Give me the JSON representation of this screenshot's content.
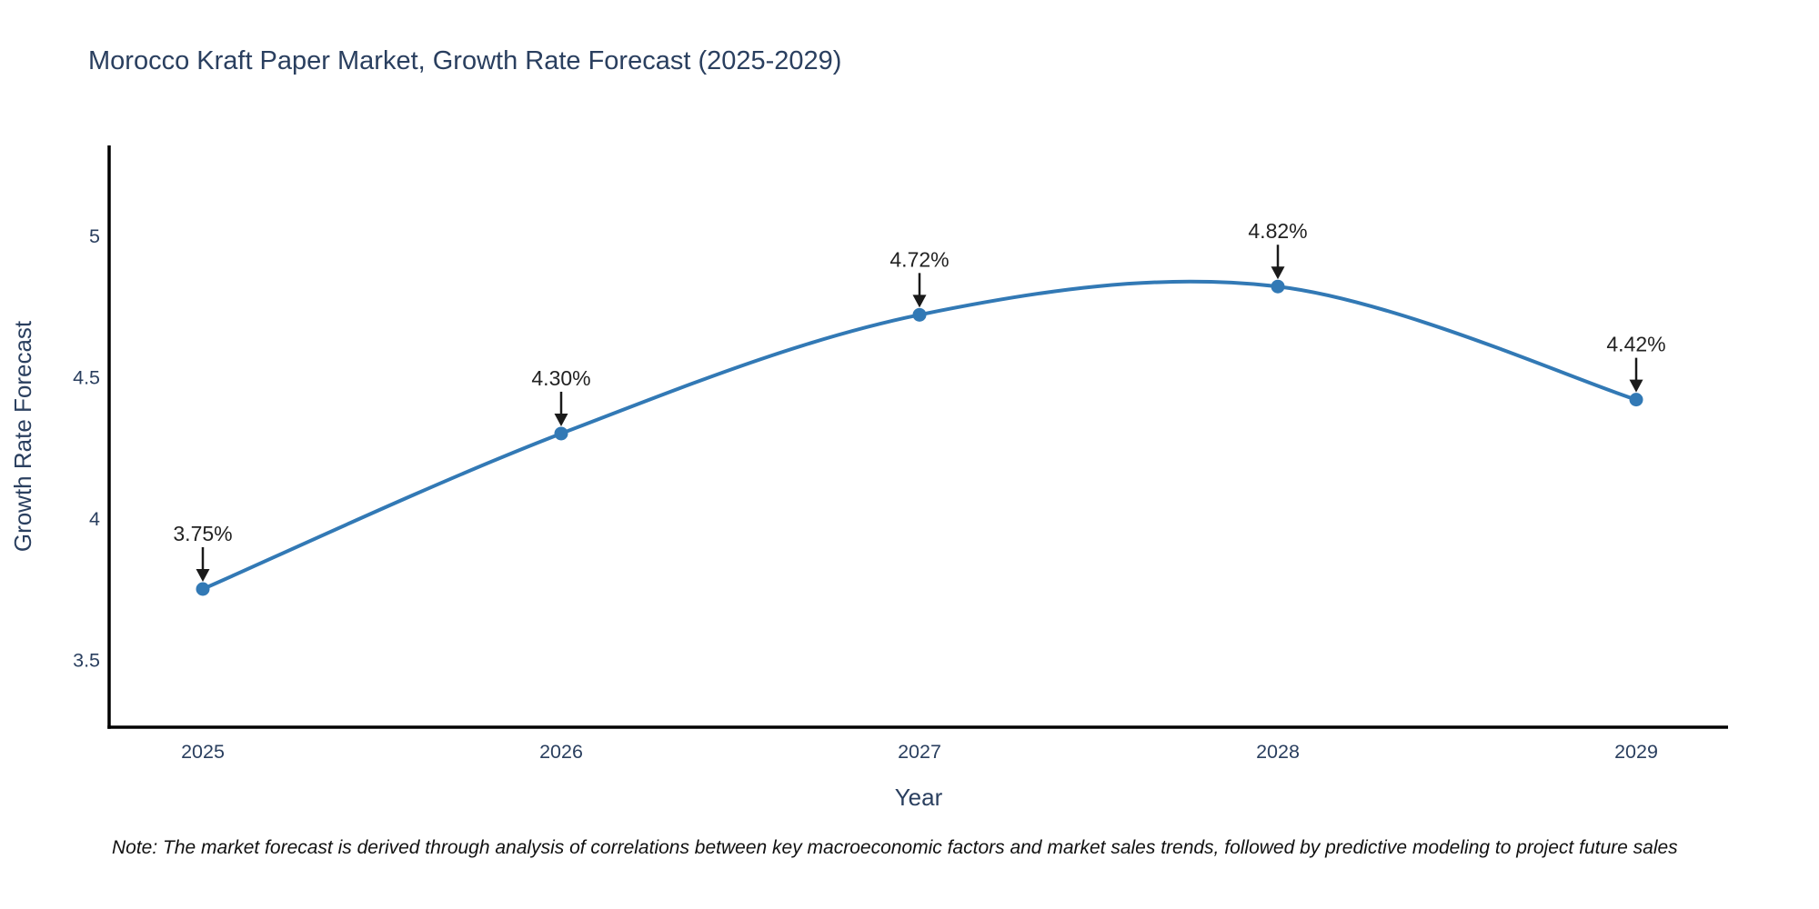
{
  "chart_data": {
    "type": "line",
    "title": "Morocco Kraft Paper Market, Growth Rate Forecast (2025-2029)",
    "xlabel": "Year",
    "ylabel": "Growth Rate Forecast",
    "categories": [
      "2025",
      "2026",
      "2027",
      "2028",
      "2029"
    ],
    "series": [
      {
        "name": "Growth Rate Forecast",
        "values": [
          3.75,
          4.3,
          4.72,
          4.82,
          4.42
        ],
        "point_labels": [
          "3.75%",
          "4.30%",
          "4.72%",
          "4.82%",
          "4.42%"
        ]
      }
    ],
    "yticks": [
      "3.5",
      "4",
      "4.5",
      "5"
    ],
    "ytick_values": [
      3.5,
      4.0,
      4.5,
      5.0
    ],
    "ylim": [
      3.27,
      5.33
    ],
    "line_shape": "spline",
    "grid": false,
    "legend_visible": false,
    "colors": {
      "line": "#3279b5",
      "marker": "#3279b5",
      "axis_line": "#000000",
      "title_text": "#2a3f5f",
      "tick_text": "#2a3f5f",
      "annotation_text": "#222222",
      "annotation_arrow": "#1a1a1a",
      "background": "#ffffff"
    }
  },
  "note": {
    "text": "Note: The market forecast is derived through analysis of correlations between key macroeconomic factors and market sales trends, followed by predictive modeling to project future sales"
  }
}
